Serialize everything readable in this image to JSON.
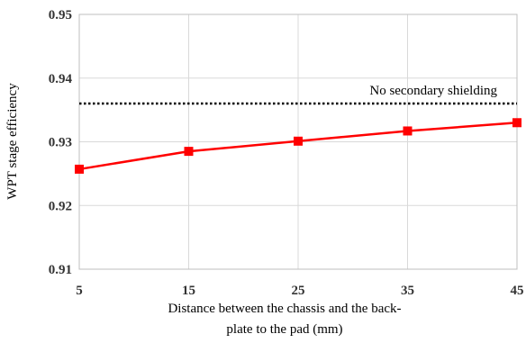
{
  "chart_data": {
    "type": "line",
    "x": [
      5,
      15,
      25,
      35,
      45
    ],
    "series": [
      {
        "values": [
          0.9257,
          0.9285,
          0.9301,
          0.9317,
          0.933
        ],
        "color": "#ff0000",
        "marker": "square"
      }
    ],
    "reference_line": {
      "label": "No secondary shielding",
      "y": 0.936,
      "style": "dotted",
      "color": "#000000"
    },
    "x_ticks": [
      "5",
      "15",
      "25",
      "35",
      "45"
    ],
    "y_ticks": [
      "0.91",
      "0.92",
      "0.93",
      "0.94",
      "0.95"
    ],
    "xlabel_line1": "Distance between the chassis and the back-",
    "xlabel_line2": "plate to the pad (mm)",
    "ylabel": "WPT stage efficiency",
    "xlim": [
      5,
      45
    ],
    "ylim": [
      0.91,
      0.95
    ],
    "grid": true,
    "legend": "none"
  }
}
